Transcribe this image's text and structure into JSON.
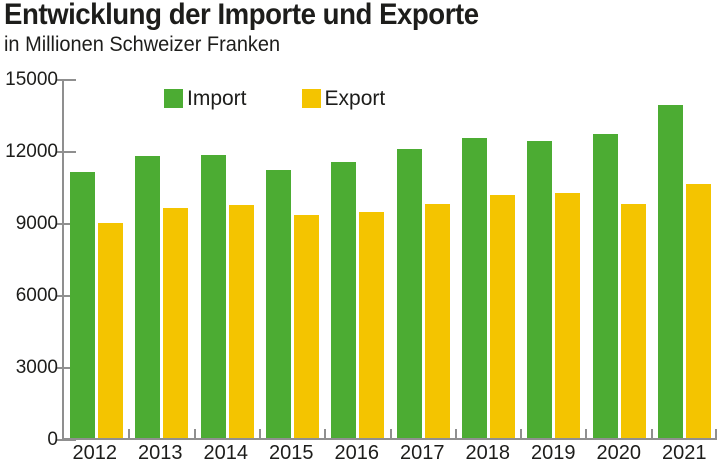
{
  "chart_data": {
    "type": "bar",
    "title": "Entwicklung der Importe und Exporte",
    "subtitle": "in Millionen Schweizer Franken",
    "categories": [
      "2012",
      "2013",
      "2014",
      "2015",
      "2016",
      "2017",
      "2018",
      "2019",
      "2020",
      "2021"
    ],
    "series": [
      {
        "name": "Import",
        "color": "#4cac33",
        "values": [
          11150,
          11800,
          11850,
          11250,
          11550,
          12100,
          12550,
          12450,
          12750,
          13950
        ]
      },
      {
        "name": "Export",
        "color": "#f4c400",
        "values": [
          9000,
          9650,
          9750,
          9350,
          9450,
          9800,
          10200,
          10250,
          9800,
          10650
        ]
      }
    ],
    "ylim": [
      0,
      15000
    ],
    "yticks": [
      0,
      3000,
      6000,
      9000,
      12000,
      15000
    ],
    "ytick_labels": [
      "0",
      "3000",
      "6000",
      "9000",
      "12000",
      "15000"
    ],
    "grid": false,
    "legend_position": "top-inside",
    "axis_color": "#8f8f8f",
    "text_color": "#1d1d1b"
  }
}
